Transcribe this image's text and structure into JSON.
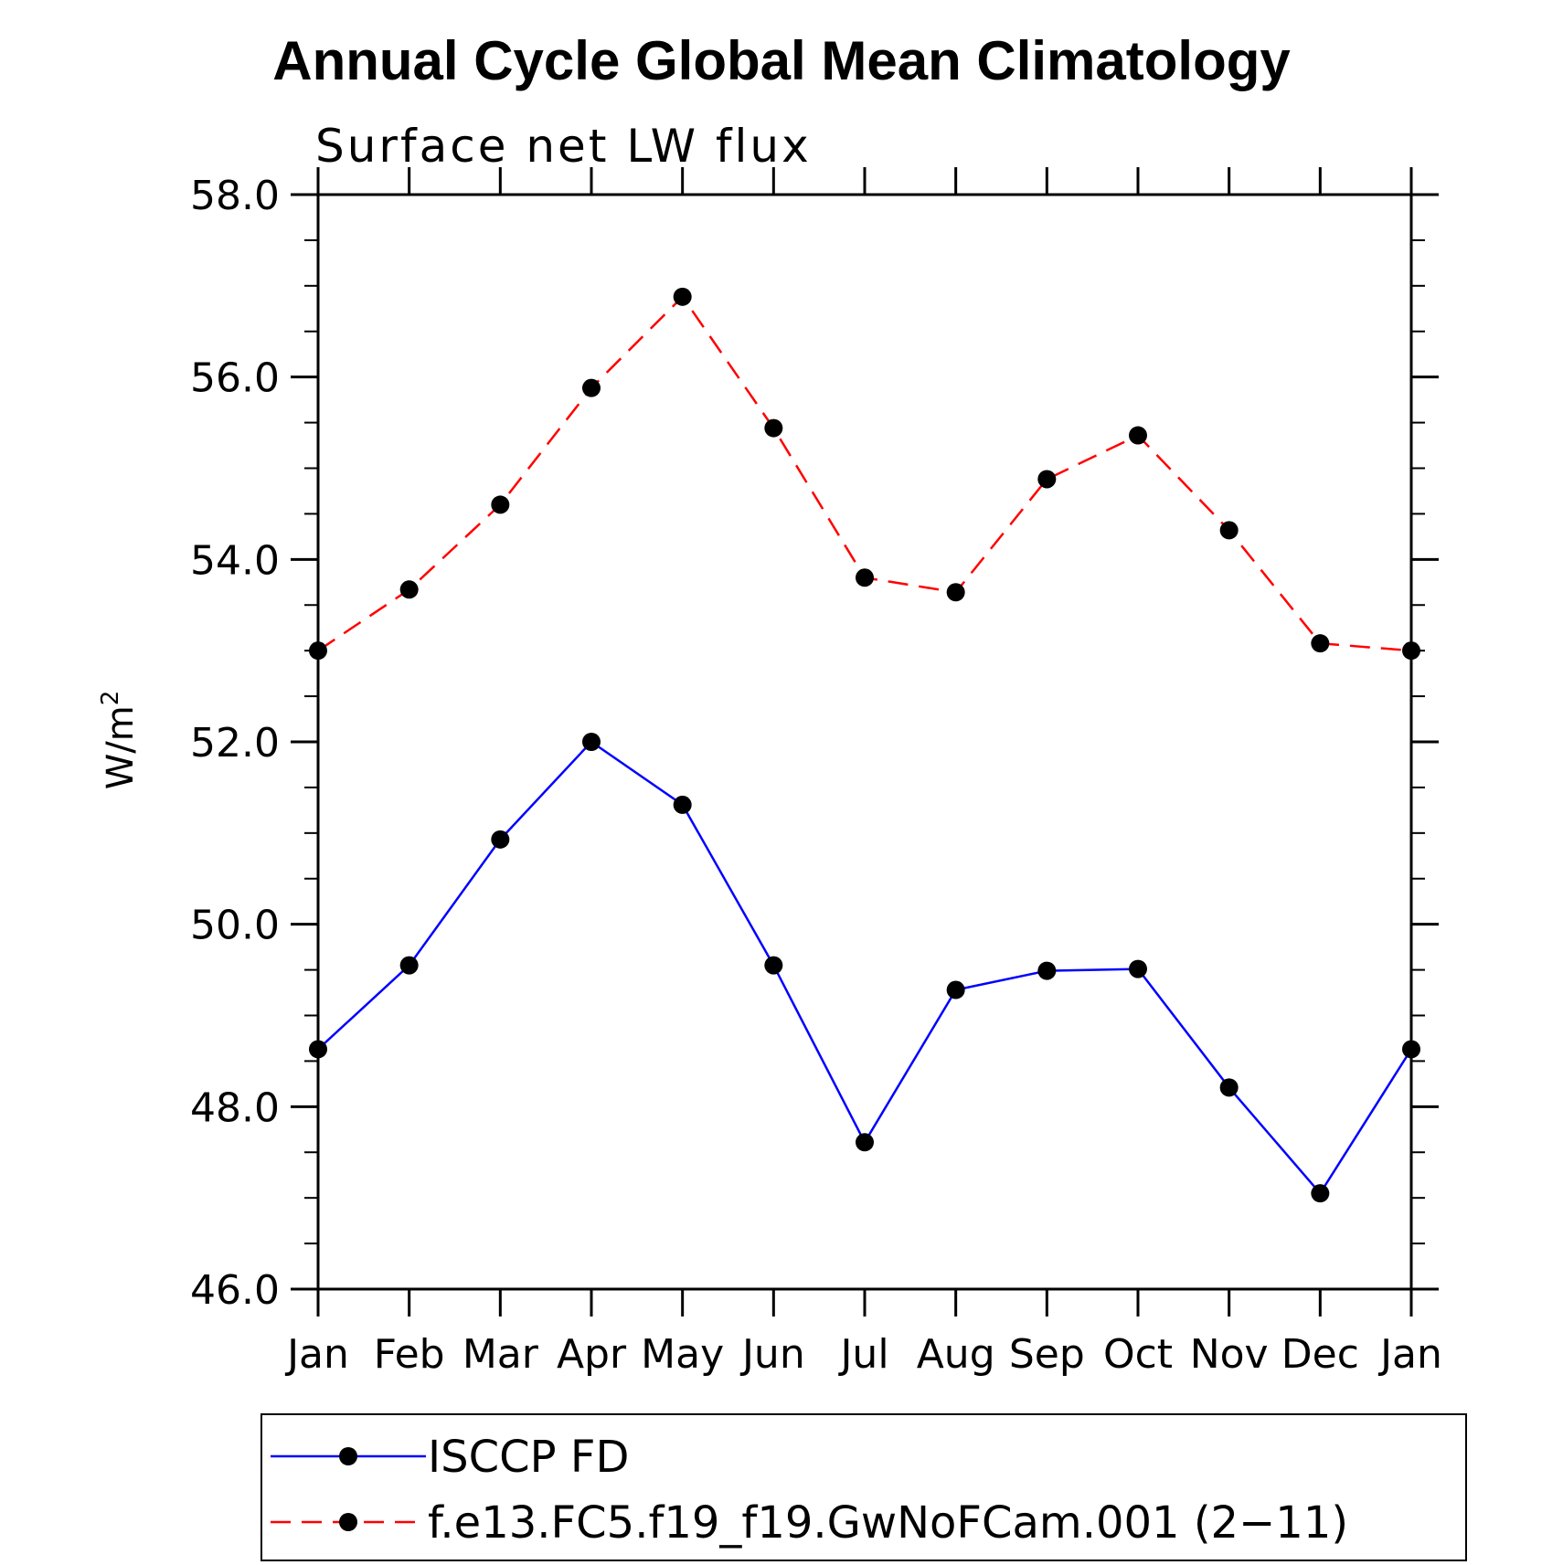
{
  "chart_data": {
    "type": "line",
    "title": "Annual Cycle Global Mean Climatology",
    "subtitle": "Surface net LW flux",
    "ylabel": "W/m",
    "ylabel_superscript": "2",
    "xlabel": "",
    "categories": [
      "Jan",
      "Feb",
      "Mar",
      "Apr",
      "May",
      "Jun",
      "Jul",
      "Aug",
      "Sep",
      "Oct",
      "Nov",
      "Dec",
      "Jan"
    ],
    "ylim": [
      46.0,
      58.0
    ],
    "yticks": [
      "46.0",
      "48.0",
      "50.0",
      "52.0",
      "54.0",
      "56.0",
      "58.0"
    ],
    "series": [
      {
        "name": "ISCCP FD",
        "color": "#0000ff",
        "dash": "solid",
        "values": [
          48.63,
          49.55,
          50.93,
          52.0,
          51.31,
          49.55,
          47.61,
          49.28,
          49.49,
          49.51,
          48.21,
          47.05,
          48.63
        ]
      },
      {
        "name": "f.e13.FC5.f19_f19.GwNoFCam.001 (2−11)",
        "color": "#ff0000",
        "dash": "dashed",
        "values": [
          53.0,
          53.67,
          54.6,
          55.88,
          56.88,
          55.44,
          53.8,
          53.64,
          54.88,
          55.36,
          54.32,
          53.08,
          53.0
        ]
      }
    ],
    "marker_color": "#000000",
    "legend_position": "bottom",
    "grid": false
  }
}
